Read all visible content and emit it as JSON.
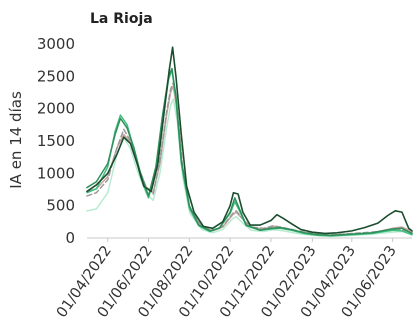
{
  "chart_data": {
    "type": "line",
    "title": "La Rioja",
    "xlabel": "",
    "ylabel": "IA en 14 días",
    "ylim": [
      0,
      3000
    ],
    "yticks": [
      0,
      500,
      1000,
      1500,
      2000,
      2500,
      3000
    ],
    "ytick_labels": [
      "0",
      "500",
      "1000",
      "1500",
      "2000",
      "2500",
      "3000"
    ],
    "xlim": [
      "2022-03-01",
      "2023-06-30"
    ],
    "xticks": [
      "2022-04-01",
      "2022-06-01",
      "2022-08-01",
      "2022-10-01",
      "2022-12-01",
      "2023-02-01",
      "2023-04-01",
      "2023-06-01"
    ],
    "xtick_labels": [
      "01/04/2022",
      "01/06/2022",
      "01/08/2022",
      "01/10/2022",
      "01/12/2022",
      "01/02/2023",
      "01/04/2023",
      "01/06/2023"
    ],
    "grid": false,
    "legend": "none",
    "series": [
      {
        "color": "#1b4d2e",
        "points": [
          [
            "2022-03-01",
            720
          ],
          [
            "2022-03-15",
            820
          ],
          [
            "2022-04-01",
            1000
          ],
          [
            "2022-04-15",
            1300
          ],
          [
            "2022-04-25",
            1560
          ],
          [
            "2022-05-05",
            1460
          ],
          [
            "2022-05-15",
            1150
          ],
          [
            "2022-05-25",
            800
          ],
          [
            "2022-06-05",
            720
          ],
          [
            "2022-06-15",
            1150
          ],
          [
            "2022-06-25",
            2000
          ],
          [
            "2022-07-02",
            2600
          ],
          [
            "2022-07-07",
            2950
          ],
          [
            "2022-07-12",
            2500
          ],
          [
            "2022-07-20",
            1600
          ],
          [
            "2022-07-28",
            800
          ],
          [
            "2022-08-08",
            400
          ],
          [
            "2022-08-22",
            180
          ],
          [
            "2022-09-05",
            150
          ],
          [
            "2022-09-20",
            250
          ],
          [
            "2022-10-01",
            500
          ],
          [
            "2022-10-06",
            700
          ],
          [
            "2022-10-13",
            680
          ],
          [
            "2022-10-20",
            400
          ],
          [
            "2022-10-31",
            200
          ],
          [
            "2022-11-15",
            200
          ],
          [
            "2022-12-01",
            270
          ],
          [
            "2022-12-10",
            360
          ],
          [
            "2022-12-20",
            300
          ],
          [
            "2023-01-01",
            220
          ],
          [
            "2023-01-15",
            130
          ],
          [
            "2023-02-01",
            90
          ],
          [
            "2023-02-20",
            70
          ],
          [
            "2023-03-10",
            80
          ],
          [
            "2023-04-01",
            110
          ],
          [
            "2023-04-20",
            160
          ],
          [
            "2023-05-10",
            230
          ],
          [
            "2023-05-25",
            350
          ],
          [
            "2023-06-05",
            420
          ],
          [
            "2023-06-15",
            400
          ],
          [
            "2023-06-25",
            150
          ],
          [
            "2023-06-30",
            110
          ]
        ]
      },
      {
        "color": "#2f8f5b",
        "points": [
          [
            "2022-03-01",
            780
          ],
          [
            "2022-03-15",
            870
          ],
          [
            "2022-04-01",
            1150
          ],
          [
            "2022-04-12",
            1600
          ],
          [
            "2022-04-20",
            1850
          ],
          [
            "2022-04-30",
            1700
          ],
          [
            "2022-05-10",
            1400
          ],
          [
            "2022-05-20",
            1000
          ],
          [
            "2022-06-01",
            650
          ],
          [
            "2022-06-12",
            1100
          ],
          [
            "2022-06-22",
            1900
          ],
          [
            "2022-07-01",
            2500
          ],
          [
            "2022-07-06",
            2620
          ],
          [
            "2022-07-12",
            2200
          ],
          [
            "2022-07-20",
            1200
          ],
          [
            "2022-08-01",
            500
          ],
          [
            "2022-08-15",
            200
          ],
          [
            "2022-09-01",
            110
          ],
          [
            "2022-09-15",
            150
          ],
          [
            "2022-10-01",
            400
          ],
          [
            "2022-10-08",
            620
          ],
          [
            "2022-10-15",
            450
          ],
          [
            "2022-10-25",
            200
          ],
          [
            "2022-11-15",
            120
          ],
          [
            "2022-12-01",
            150
          ],
          [
            "2022-12-15",
            160
          ],
          [
            "2023-01-01",
            130
          ],
          [
            "2023-01-20",
            80
          ],
          [
            "2023-02-10",
            50
          ],
          [
            "2023-03-01",
            40
          ],
          [
            "2023-04-01",
            60
          ],
          [
            "2023-05-01",
            80
          ],
          [
            "2023-06-01",
            140
          ],
          [
            "2023-06-15",
            150
          ],
          [
            "2023-06-30",
            70
          ]
        ]
      },
      {
        "color": "#3fbf7f",
        "points": [
          [
            "2022-03-01",
            700
          ],
          [
            "2022-03-15",
            760
          ],
          [
            "2022-04-01",
            1100
          ],
          [
            "2022-04-12",
            1650
          ],
          [
            "2022-04-20",
            1900
          ],
          [
            "2022-04-30",
            1750
          ],
          [
            "2022-05-10",
            1380
          ],
          [
            "2022-05-20",
            950
          ],
          [
            "2022-06-01",
            620
          ],
          [
            "2022-06-12",
            1050
          ],
          [
            "2022-06-22",
            1850
          ],
          [
            "2022-07-01",
            2450
          ],
          [
            "2022-07-06",
            2600
          ],
          [
            "2022-07-12",
            2150
          ],
          [
            "2022-07-20",
            1150
          ],
          [
            "2022-08-01",
            460
          ],
          [
            "2022-08-15",
            190
          ],
          [
            "2022-09-01",
            100
          ],
          [
            "2022-09-15",
            160
          ],
          [
            "2022-10-01",
            380
          ],
          [
            "2022-10-08",
            560
          ],
          [
            "2022-10-15",
            420
          ],
          [
            "2022-10-25",
            190
          ],
          [
            "2022-11-15",
            120
          ],
          [
            "2022-12-01",
            140
          ],
          [
            "2022-12-15",
            150
          ],
          [
            "2023-01-01",
            120
          ],
          [
            "2023-01-20",
            70
          ],
          [
            "2023-02-10",
            40
          ],
          [
            "2023-03-01",
            30
          ],
          [
            "2023-04-01",
            50
          ],
          [
            "2023-05-01",
            70
          ],
          [
            "2023-06-01",
            120
          ],
          [
            "2023-06-15",
            110
          ],
          [
            "2023-06-30",
            50
          ]
        ]
      },
      {
        "color": "#9a9a9a",
        "dashed": true,
        "points": [
          [
            "2022-03-01",
            650
          ],
          [
            "2022-03-15",
            700
          ],
          [
            "2022-04-01",
            900
          ],
          [
            "2022-04-15",
            1400
          ],
          [
            "2022-04-25",
            1680
          ],
          [
            "2022-05-05",
            1500
          ],
          [
            "2022-05-15",
            1150
          ],
          [
            "2022-05-28",
            800
          ],
          [
            "2022-06-08",
            680
          ],
          [
            "2022-06-18",
            1200
          ],
          [
            "2022-06-28",
            1950
          ],
          [
            "2022-07-04",
            2300
          ],
          [
            "2022-07-08",
            2400
          ],
          [
            "2022-07-14",
            2000
          ],
          [
            "2022-07-22",
            1100
          ],
          [
            "2022-08-02",
            450
          ],
          [
            "2022-08-20",
            180
          ],
          [
            "2022-09-05",
            120
          ],
          [
            "2022-09-20",
            180
          ],
          [
            "2022-10-05",
            380
          ],
          [
            "2022-10-10",
            420
          ],
          [
            "2022-10-20",
            300
          ],
          [
            "2022-11-01",
            170
          ],
          [
            "2022-11-20",
            150
          ],
          [
            "2022-12-05",
            190
          ],
          [
            "2022-12-20",
            160
          ],
          [
            "2023-01-10",
            110
          ],
          [
            "2023-02-01",
            70
          ],
          [
            "2023-03-01",
            50
          ],
          [
            "2023-04-01",
            70
          ],
          [
            "2023-05-01",
            90
          ],
          [
            "2023-06-01",
            120
          ],
          [
            "2023-06-15",
            130
          ],
          [
            "2023-06-30",
            80
          ]
        ]
      },
      {
        "color": "#c9a4a0",
        "points": [
          [
            "2022-03-01",
            720
          ],
          [
            "2022-03-15",
            760
          ],
          [
            "2022-04-01",
            950
          ],
          [
            "2022-04-15",
            1400
          ],
          [
            "2022-04-25",
            1600
          ],
          [
            "2022-05-05",
            1480
          ],
          [
            "2022-05-15",
            1150
          ],
          [
            "2022-05-28",
            790
          ],
          [
            "2022-06-08",
            700
          ],
          [
            "2022-06-18",
            1150
          ],
          [
            "2022-06-28",
            1900
          ],
          [
            "2022-07-04",
            2250
          ],
          [
            "2022-07-08",
            2350
          ],
          [
            "2022-07-14",
            1950
          ],
          [
            "2022-07-22",
            1050
          ],
          [
            "2022-08-02",
            430
          ],
          [
            "2022-08-20",
            170
          ],
          [
            "2022-09-05",
            110
          ],
          [
            "2022-09-20",
            170
          ],
          [
            "2022-10-05",
            360
          ],
          [
            "2022-10-10",
            400
          ],
          [
            "2022-10-20",
            290
          ],
          [
            "2022-11-01",
            160
          ],
          [
            "2022-11-20",
            140
          ],
          [
            "2022-12-05",
            180
          ],
          [
            "2022-12-20",
            150
          ],
          [
            "2023-01-10",
            100
          ],
          [
            "2023-02-01",
            60
          ],
          [
            "2023-03-01",
            45
          ],
          [
            "2023-04-01",
            60
          ],
          [
            "2023-05-01",
            80
          ],
          [
            "2023-06-01",
            150
          ],
          [
            "2023-06-15",
            170
          ],
          [
            "2023-06-30",
            100
          ]
        ]
      },
      {
        "color": "#b8ecd2",
        "points": [
          [
            "2022-03-01",
            420
          ],
          [
            "2022-03-15",
            450
          ],
          [
            "2022-04-01",
            700
          ],
          [
            "2022-04-15",
            1300
          ],
          [
            "2022-04-25",
            1550
          ],
          [
            "2022-05-05",
            1380
          ],
          [
            "2022-05-15",
            1050
          ],
          [
            "2022-05-28",
            700
          ],
          [
            "2022-06-08",
            580
          ],
          [
            "2022-06-18",
            1000
          ],
          [
            "2022-06-28",
            1700
          ],
          [
            "2022-07-04",
            2050
          ],
          [
            "2022-07-08",
            2150
          ],
          [
            "2022-07-14",
            1800
          ],
          [
            "2022-07-22",
            950
          ],
          [
            "2022-08-02",
            380
          ],
          [
            "2022-08-20",
            130
          ],
          [
            "2022-09-05",
            80
          ],
          [
            "2022-09-20",
            130
          ],
          [
            "2022-10-05",
            300
          ],
          [
            "2022-10-10",
            330
          ],
          [
            "2022-10-20",
            230
          ],
          [
            "2022-11-01",
            120
          ],
          [
            "2022-11-20",
            100
          ],
          [
            "2022-12-05",
            130
          ],
          [
            "2022-12-20",
            110
          ],
          [
            "2023-01-10",
            70
          ],
          [
            "2023-02-01",
            40
          ],
          [
            "2023-03-01",
            30
          ],
          [
            "2023-04-01",
            40
          ],
          [
            "2023-05-01",
            60
          ],
          [
            "2023-06-01",
            90
          ],
          [
            "2023-06-15",
            100
          ],
          [
            "2023-06-30",
            60
          ]
        ]
      }
    ]
  }
}
